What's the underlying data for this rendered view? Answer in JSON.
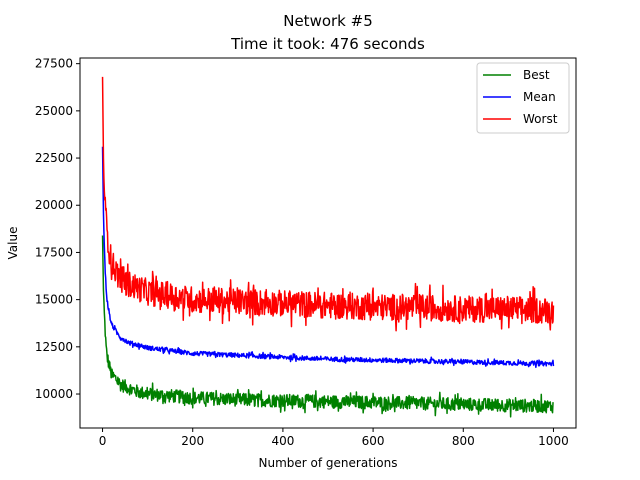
{
  "chart_data": {
    "type": "line",
    "title": "Network #5",
    "subtitle": "Time it took: 476 seconds",
    "xlabel": "Number of generations",
    "ylabel": "Value",
    "xlim": [
      -50,
      1050
    ],
    "ylim": [
      8200,
      27800
    ],
    "xticks": [
      0,
      200,
      400,
      600,
      800,
      1000
    ],
    "yticks": [
      10000,
      12500,
      15000,
      17500,
      20000,
      22500,
      25000,
      27500
    ],
    "legend_position": "top-right",
    "series": [
      {
        "name": "Best",
        "color": "#008000",
        "x": [
          0,
          2,
          4,
          6,
          8,
          10,
          15,
          20,
          30,
          40,
          60,
          80,
          100,
          150,
          200,
          300,
          400,
          500,
          600,
          700,
          800,
          900,
          1000
        ],
        "values": [
          18400,
          15500,
          14200,
          13300,
          12400,
          12000,
          11500,
          11000,
          10800,
          10500,
          10300,
          10100,
          10000,
          9900,
          9800,
          9700,
          9650,
          9600,
          9550,
          9500,
          9450,
          9400,
          9350
        ],
        "noise": 350
      },
      {
        "name": "Mean",
        "color": "#0000ff",
        "x": [
          0,
          2,
          4,
          6,
          8,
          10,
          15,
          20,
          30,
          40,
          60,
          80,
          100,
          150,
          200,
          300,
          400,
          500,
          600,
          700,
          800,
          900,
          1000
        ],
        "values": [
          23100,
          19600,
          17800,
          16500,
          15600,
          15000,
          14200,
          13700,
          13300,
          13000,
          12700,
          12600,
          12450,
          12300,
          12150,
          12050,
          11950,
          11850,
          11800,
          11750,
          11700,
          11650,
          11600
        ],
        "noise": 120
      },
      {
        "name": "Worst",
        "color": "#ff0000",
        "x": [
          0,
          2,
          4,
          6,
          8,
          10,
          15,
          20,
          30,
          40,
          60,
          80,
          100,
          150,
          200,
          300,
          400,
          500,
          600,
          700,
          800,
          900,
          1000
        ],
        "values": [
          26800,
          22500,
          21000,
          20000,
          19200,
          18600,
          17600,
          17000,
          16500,
          16100,
          15800,
          15600,
          15400,
          15200,
          15000,
          14900,
          14800,
          14700,
          14600,
          14600,
          14500,
          14500,
          14400
        ],
        "noise": 700
      }
    ]
  }
}
